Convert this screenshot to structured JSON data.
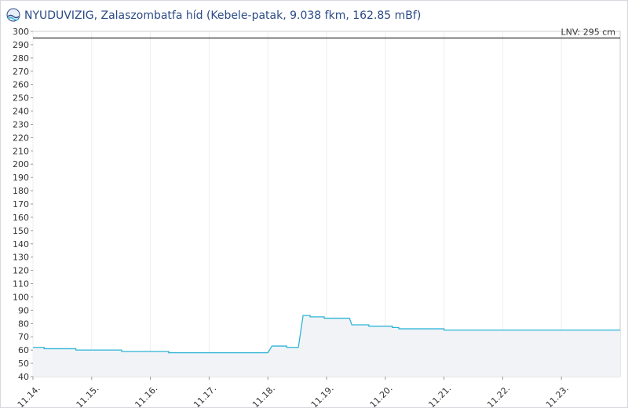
{
  "chart_data": {
    "type": "line",
    "title": "NYUDUVIZIG, Zalaszombatfa híd (Kebele-patak, 9.038 fkm, 162.85 mBf)",
    "x": [
      14.0,
      14.19,
      14.19,
      14.73,
      14.73,
      15.51,
      15.51,
      16.31,
      16.31,
      18.0,
      18.07,
      18.32,
      18.32,
      18.52,
      18.6,
      18.72,
      18.72,
      18.96,
      18.96,
      19.39,
      19.43,
      19.72,
      19.72,
      20.12,
      20.12,
      20.23,
      20.23,
      21.0,
      21.0,
      24.0
    ],
    "series": [
      {
        "color": "#2fb5d6",
        "values": [
          62,
          62,
          61,
          61,
          60,
          60,
          59,
          59,
          58,
          58,
          63,
          63,
          62,
          62,
          86,
          86,
          85,
          85,
          84,
          84,
          79,
          79,
          78,
          78,
          77,
          77,
          76,
          76,
          75,
          75
        ]
      }
    ],
    "xlim": [
      14,
      24
    ],
    "xticks": [
      {
        "value": 14,
        "label": "11.14."
      },
      {
        "value": 15,
        "label": "11.15."
      },
      {
        "value": 16,
        "label": "11.16."
      },
      {
        "value": 17,
        "label": "11.17."
      },
      {
        "value": 18,
        "label": "11.18."
      },
      {
        "value": 19,
        "label": "11.19."
      },
      {
        "value": 20,
        "label": "11.20."
      },
      {
        "value": 21,
        "label": "11.21."
      },
      {
        "value": 22,
        "label": "11.22."
      },
      {
        "value": 23,
        "label": "11.23."
      }
    ],
    "ylim": [
      40,
      300
    ],
    "yticks": [
      40,
      50,
      60,
      70,
      80,
      90,
      100,
      110,
      120,
      130,
      140,
      150,
      160,
      170,
      180,
      190,
      200,
      210,
      220,
      230,
      240,
      250,
      260,
      270,
      280,
      290,
      300
    ],
    "grid": true,
    "annotation": {
      "value": 295,
      "label": "LNV: 295 cm"
    }
  }
}
